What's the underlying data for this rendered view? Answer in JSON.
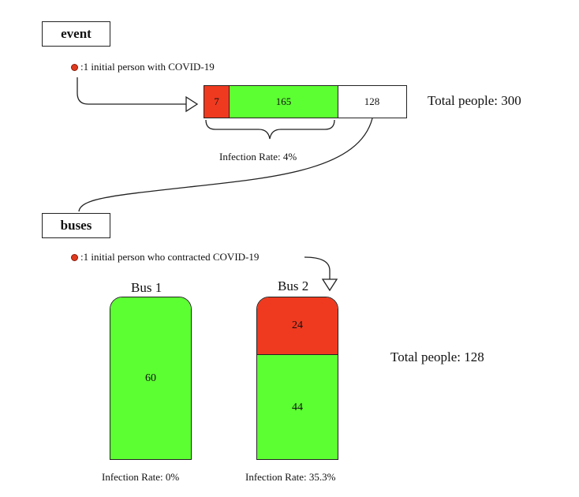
{
  "colors": {
    "infected": "#ef3a20",
    "exposed": "#5cff32",
    "uninfected": "#ffffff",
    "outline": "#222222"
  },
  "event": {
    "label": "event",
    "legend": ":1 initial person with COVID-19",
    "segments": {
      "infected": "7",
      "exposed": "165",
      "uninfected": "128"
    },
    "segment_values": {
      "infected": 7,
      "exposed": 165,
      "uninfected": 128
    },
    "infection_rate": "Infection Rate: 4%",
    "total": "Total people: 300"
  },
  "buses": {
    "label": "buses",
    "legend": ":1 initial person who contracted COVID-19",
    "bus1": {
      "title": "Bus 1",
      "exposed": "60",
      "infection_rate": "Infection Rate: 0%"
    },
    "bus2": {
      "title": "Bus 2",
      "infected": "24",
      "exposed": "44",
      "infection_rate": "Infection Rate: 35.3%"
    },
    "total": "Total people: 128"
  }
}
